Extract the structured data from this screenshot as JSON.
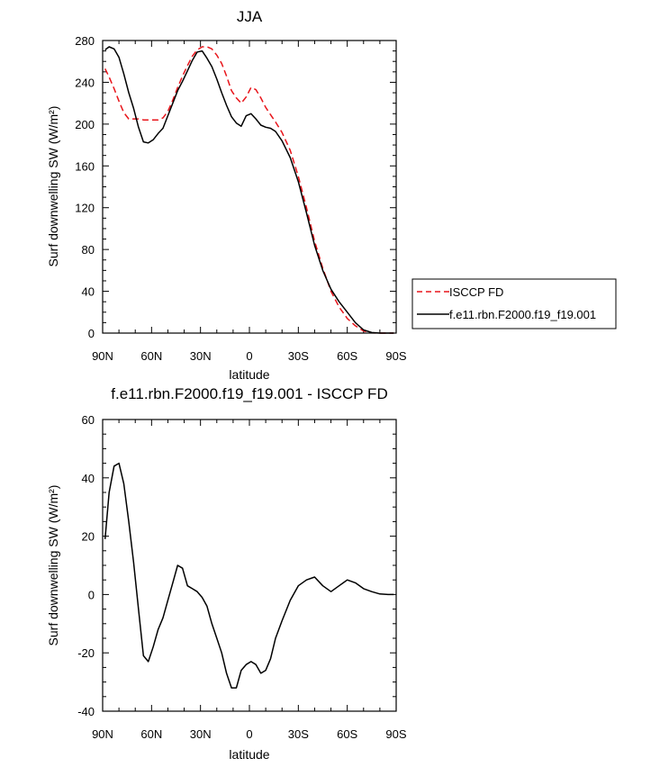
{
  "chart_data": [
    {
      "type": "line",
      "title": "JJA",
      "xlabel": "latitude",
      "ylabel": "Surf downwelling SW (W/m²)",
      "xlim": [
        90,
        -90
      ],
      "ylim": [
        0,
        280
      ],
      "xticks": [
        90,
        60,
        30,
        0,
        -30,
        -60,
        -90
      ],
      "xtick_labels": [
        "90N",
        "60N",
        "30N",
        "0",
        "30S",
        "60S",
        "90S"
      ],
      "yticks": [
        0,
        40,
        80,
        120,
        160,
        200,
        240,
        280
      ],
      "ytick_labels": [
        "0",
        "40",
        "80",
        "120",
        "160",
        "200",
        "240",
        "280"
      ],
      "legend_position": "right",
      "series": [
        {
          "name": "ISCCP FD",
          "color": "#e8151b",
          "dash": "dashed",
          "x": [
            88.5,
            86,
            83,
            80,
            77,
            74,
            71,
            68,
            65,
            62,
            59,
            56,
            53,
            50,
            47,
            44,
            41,
            38,
            35,
            32,
            29,
            26,
            23,
            20,
            17,
            14,
            11,
            8,
            5,
            2,
            -1,
            -4,
            -7,
            -10,
            -13,
            -16,
            -20,
            -25,
            -30,
            -35,
            -40,
            -45,
            -50,
            -55,
            -60,
            -65,
            -70,
            -75,
            -80,
            -85,
            -88.5
          ],
          "y": [
            253,
            245,
            234,
            222,
            211,
            205,
            205,
            205,
            204,
            204,
            204,
            204,
            206,
            212,
            223,
            235,
            246,
            256,
            265,
            271,
            274,
            274,
            272,
            266,
            258,
            246,
            232,
            225,
            220,
            226,
            235,
            233,
            225,
            216,
            209,
            202,
            192,
            175,
            150,
            120,
            88,
            62,
            40,
            25,
            14,
            7,
            2,
            0.3,
            0,
            0,
            0
          ]
        },
        {
          "name": "f.e11.rbn.F2000.f19_f19.001",
          "color": "#000000",
          "dash": "solid",
          "x": [
            88.5,
            86,
            83,
            80,
            77,
            74,
            71,
            68,
            65,
            62,
            59,
            56,
            53,
            50,
            47,
            44,
            41,
            38,
            35,
            32,
            29,
            26,
            23,
            20,
            17,
            14,
            11,
            8,
            5,
            2,
            -1,
            -4,
            -7,
            -10,
            -13,
            -16,
            -20,
            -25,
            -30,
            -35,
            -40,
            -45,
            -50,
            -55,
            -60,
            -65,
            -70,
            -75,
            -80,
            -85,
            -88.5
          ],
          "y": [
            271,
            274,
            272,
            264,
            248,
            230,
            215,
            197,
            183,
            182,
            185,
            191,
            196,
            208,
            220,
            232,
            241,
            251,
            261,
            269,
            270,
            263,
            255,
            243,
            230,
            218,
            207,
            201,
            198,
            208,
            210,
            205,
            199,
            197,
            196,
            193,
            184,
            168,
            145,
            115,
            84,
            60,
            42,
            30,
            20,
            10,
            3,
            0.5,
            0,
            0,
            0
          ]
        }
      ]
    },
    {
      "type": "line",
      "title": "f.e11.rbn.F2000.f19_f19.001 - ISCCP FD",
      "xlabel": "latitude",
      "ylabel": "Surf downwelling SW (W/m²)",
      "xlim": [
        90,
        -90
      ],
      "ylim": [
        -40,
        60
      ],
      "xticks": [
        90,
        60,
        30,
        0,
        -30,
        -60,
        -90
      ],
      "xtick_labels": [
        "90N",
        "60N",
        "30N",
        "0",
        "30S",
        "60S",
        "90S"
      ],
      "yticks": [
        -40,
        -20,
        0,
        20,
        40,
        60
      ],
      "ytick_labels": [
        "-40",
        "-20",
        "0",
        "20",
        "40",
        "60"
      ],
      "series": [
        {
          "name": "",
          "color": "#000000",
          "dash": "solid",
          "x": [
            88.5,
            86,
            83,
            80,
            77,
            74,
            71,
            68,
            65,
            62,
            59,
            56,
            53,
            50,
            47,
            44,
            41,
            38,
            35,
            32,
            29,
            26,
            23,
            20,
            17,
            14,
            11,
            8,
            5,
            2,
            -1,
            -4,
            -7,
            -10,
            -13,
            -16,
            -20,
            -25,
            -30,
            -35,
            -40,
            -45,
            -50,
            -55,
            -60,
            -65,
            -70,
            -75,
            -80,
            -85,
            -88.5
          ],
          "y": [
            19,
            35,
            44,
            45,
            38,
            25,
            11,
            -5,
            -21,
            -23,
            -18,
            -12,
            -8,
            -2,
            4,
            10,
            9,
            3,
            2,
            1,
            -1,
            -4,
            -10,
            -15,
            -20,
            -27,
            -32,
            -32,
            -26,
            -24,
            -23,
            -24,
            -27,
            -26,
            -22,
            -15,
            -9,
            -2,
            3,
            5,
            6,
            3,
            1,
            3,
            5,
            4,
            2,
            1,
            0.2,
            0,
            0
          ]
        }
      ]
    }
  ]
}
